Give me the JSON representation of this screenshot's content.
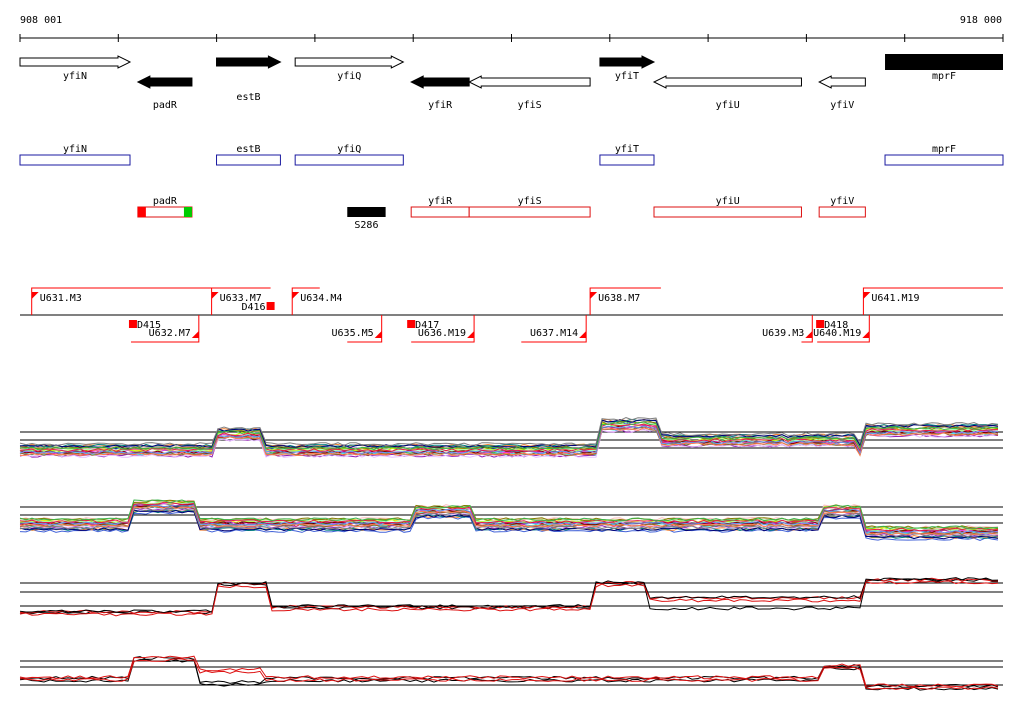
{
  "scale": {
    "start_label": "908 001",
    "end_label": "918 000",
    "start": 908001,
    "end": 918000
  },
  "genes": [
    {
      "name": "yfiN",
      "start": 908001,
      "end": 909120,
      "strand": "+",
      "filled": false,
      "label_row": "below",
      "detail_row": "top"
    },
    {
      "name": "padR",
      "start": 909200,
      "end": 909750,
      "strand": "-",
      "filled": true,
      "label_row": "low",
      "detail_row": "bottom"
    },
    {
      "name": "estB",
      "start": 910000,
      "end": 910650,
      "strand": "+",
      "filled": true,
      "label_row": "low",
      "detail_row": "top"
    },
    {
      "name": "yfiQ",
      "start": 910800,
      "end": 911900,
      "strand": "+",
      "filled": false,
      "label_row": "below",
      "detail_row": "top"
    },
    {
      "name": "yfiR",
      "start": 911980,
      "end": 912570,
      "strand": "-",
      "filled": true,
      "label_row": "below",
      "detail_row": "bottom"
    },
    {
      "name": "yfiS",
      "start": 912570,
      "end": 913800,
      "strand": "-",
      "filled": false,
      "label_row": "low",
      "detail_row": "bottom"
    },
    {
      "name": "yfiT",
      "start": 913900,
      "end": 914450,
      "strand": "+",
      "filled": true,
      "label_row": "below",
      "detail_row": "top"
    },
    {
      "name": "yfiU",
      "start": 914450,
      "end": 915950,
      "strand": "-",
      "filled": false,
      "label_row": "below",
      "detail_row": "bottom"
    },
    {
      "name": "yfiV",
      "start": 916130,
      "end": 916600,
      "strand": "-",
      "filled": false,
      "label_row": "low",
      "detail_row": "bottom"
    },
    {
      "name": "mprF",
      "start": 916800,
      "end": 918000,
      "strand": "+",
      "filled": true,
      "label_row": "below",
      "detail_row": "top"
    }
  ],
  "features": [
    {
      "name": "S286",
      "start": 911330,
      "end": 911720
    }
  ],
  "transcripts_top": [
    {
      "name": "U631.M3",
      "start": 908120,
      "end": 910000
    },
    {
      "name": "U633.M7",
      "start": 909950,
      "end": 910550
    },
    {
      "name": "U634.M4",
      "start": 910770,
      "end": 911050
    },
    {
      "name": "U638.M7",
      "start": 913800,
      "end": 914520
    },
    {
      "name": "U641.M19",
      "start": 916580,
      "end": 918000
    }
  ],
  "transcripts_bottom": [
    {
      "name": "U632.M7",
      "start": 909130,
      "end": 909820
    },
    {
      "name": "U635.M5",
      "start": 911330,
      "end": 911680
    },
    {
      "name": "U636.M19",
      "start": 911980,
      "end": 912620
    },
    {
      "name": "U637.M14",
      "start": 913100,
      "end": 913760
    },
    {
      "name": "U639.M3",
      "start": 915950,
      "end": 916060
    },
    {
      "name": "U640.M19",
      "start": 916110,
      "end": 916640
    }
  ],
  "markers": [
    {
      "name": "D415",
      "pos": 909150
    },
    {
      "name": "D416",
      "pos": 910550
    },
    {
      "name": "D417",
      "pos": 911980
    },
    {
      "name": "D418",
      "pos": 916140
    }
  ],
  "colors": {
    "gene_strand_plus": "#1a1aa0",
    "gene_strand_minus": "#dd1111",
    "marker": "#ff0000",
    "green_cap": "#00cc00",
    "axis": "#000000"
  }
}
